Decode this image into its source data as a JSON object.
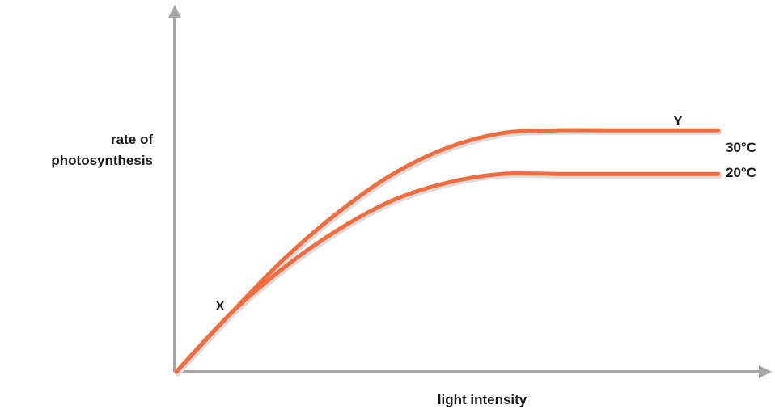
{
  "chart_data": {
    "type": "line",
    "title": "",
    "xlabel": "light intensity",
    "ylabel": [
      "rate of",
      "photosynthesis"
    ],
    "xlim": [
      0,
      10
    ],
    "ylim": [
      0,
      10
    ],
    "x_ticks": "none",
    "y_ticks": "none",
    "grid": false,
    "legend": "none",
    "colors": {
      "axis": "#a6a6a6",
      "curve": "#f26d3d",
      "shadow": "#dcdcdc",
      "text": "#1a1a1a"
    },
    "series": [
      {
        "name": "30°C",
        "x": [
          0,
          1,
          2,
          3,
          4,
          5,
          6,
          7,
          8,
          9,
          10
        ],
        "y": [
          0,
          2.0,
          3.9,
          5.5,
          6.8,
          7.7,
          8.2,
          8.3,
          8.3,
          8.3,
          8.3
        ]
      },
      {
        "name": "20°C",
        "x": [
          0,
          1,
          2,
          3,
          4,
          5,
          6,
          7,
          8,
          9,
          10
        ],
        "y": [
          0,
          2.0,
          3.6,
          4.9,
          5.9,
          6.5,
          6.8,
          6.8,
          6.8,
          6.8,
          6.8
        ]
      }
    ],
    "annotations": [
      "X",
      "Y"
    ]
  }
}
